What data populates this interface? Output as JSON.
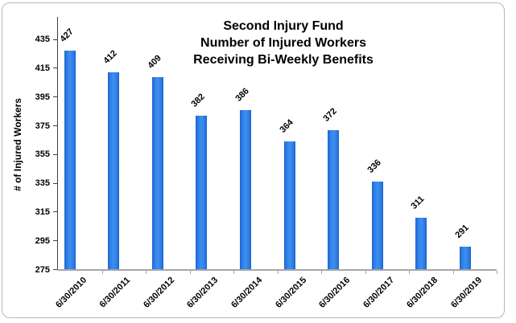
{
  "chart": {
    "title_lines": [
      "Second Injury Fund",
      "Number of Injured Workers",
      "Receiving Bi-Weekly Benefits"
    ],
    "y_axis_title": "# of Injured Workers"
  },
  "chart_data": {
    "type": "bar",
    "title": "Second Injury Fund Number of Injured Workers Receiving Bi-Weekly Benefits",
    "categories": [
      "6/30/2010",
      "6/30/2011",
      "6/30/2012",
      "6/30/2013",
      "6/30/2014",
      "6/30/2015",
      "6/30/2016",
      "6/30/2017",
      "6/30/2018",
      "6/30/2019"
    ],
    "values": [
      427,
      412,
      409,
      382,
      386,
      364,
      372,
      336,
      311,
      291
    ],
    "xlabel": "",
    "ylabel": "# of Injured Workers",
    "ylim": [
      275,
      451
    ],
    "yticks": [
      275,
      295,
      315,
      335,
      355,
      375,
      395,
      415,
      435
    ],
    "grid": false,
    "legend": "none",
    "data_labels": "rotated-45-above-bars",
    "x_tick_label_rotation": 45,
    "colors": {
      "bar_fill": "#2e7fe6",
      "bar_fill_light": "#3f8ef0",
      "bar_edge": "#1a63cf",
      "y_axis": "#404040",
      "x_axis": "#a6a6a6",
      "text": "#000000",
      "frame_border": "#b8b8b8"
    }
  }
}
